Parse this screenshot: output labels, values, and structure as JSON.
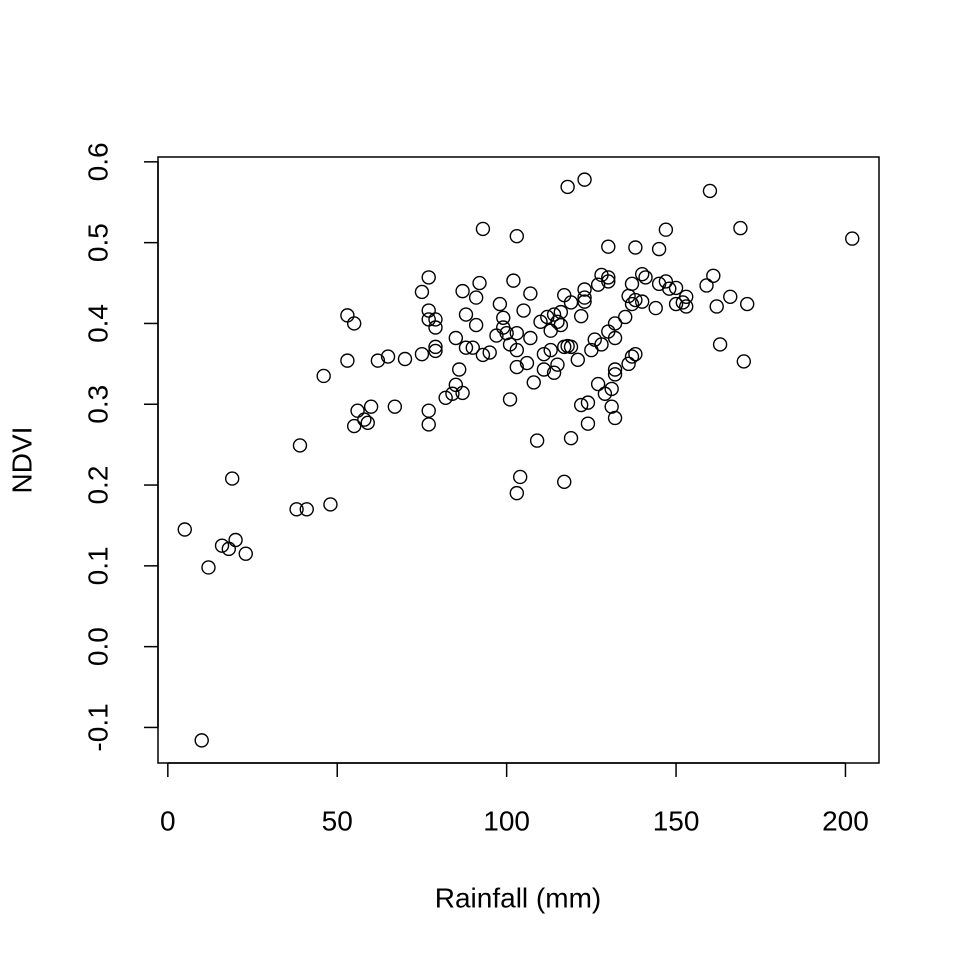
{
  "chart_data": {
    "type": "scatter",
    "x_label": "Rainfall (mm)",
    "y_label": "NDVI",
    "xlim": [
      -2.9,
      209.9
    ],
    "ylim": [
      -0.144,
      0.606
    ],
    "xticks": [
      0,
      50,
      100,
      150,
      200
    ],
    "yticks": [
      -0.1,
      {
        "value": 0,
        "label": "0.0"
      },
      0.1,
      0.2,
      0.3,
      0.4,
      0.5,
      0.6
    ],
    "color": "#000000",
    "x": [
      5,
      10,
      12,
      16,
      18,
      19,
      20,
      23,
      38,
      39,
      41,
      46,
      48,
      53,
      53,
      55,
      55,
      56,
      58,
      59,
      60,
      62,
      65,
      67,
      70,
      75,
      75,
      77,
      77,
      77,
      77,
      77,
      79,
      79,
      79,
      79,
      82,
      84,
      85,
      85,
      86,
      87,
      87,
      88,
      88,
      90,
      91,
      91,
      92,
      93,
      93,
      95,
      97,
      98,
      99,
      99,
      100,
      101,
      101,
      102,
      103,
      103,
      103,
      103,
      103,
      104,
      105,
      106,
      107,
      107,
      108,
      109,
      110,
      111,
      111,
      112,
      113,
      113,
      114,
      114,
      115,
      115,
      116,
      116,
      117,
      117,
      117,
      118,
      118,
      119,
      119,
      119,
      121,
      122,
      122,
      123,
      123,
      123,
      123,
      124,
      124,
      125,
      126,
      127,
      127,
      128,
      128,
      129,
      130,
      130,
      130,
      130,
      131,
      131,
      132,
      132,
      132,
      132,
      132,
      135,
      136,
      136,
      137,
      137,
      137,
      138,
      138,
      138,
      140,
      140,
      141,
      144,
      145,
      145,
      147,
      147,
      148,
      150,
      150,
      152,
      153,
      153,
      159,
      160,
      161,
      162,
      163,
      166,
      169,
      170,
      171,
      202
    ],
    "y": [
      0.145,
      -0.116,
      0.098,
      0.125,
      0.121,
      0.208,
      0.132,
      0.115,
      0.17,
      0.249,
      0.17,
      0.335,
      0.176,
      0.41,
      0.354,
      0.4,
      0.273,
      0.292,
      0.281,
      0.277,
      0.297,
      0.354,
      0.359,
      0.297,
      0.356,
      0.439,
      0.362,
      0.457,
      0.416,
      0.405,
      0.292,
      0.275,
      0.405,
      0.395,
      0.371,
      0.366,
      0.308,
      0.313,
      0.324,
      0.382,
      0.343,
      0.44,
      0.314,
      0.411,
      0.37,
      0.37,
      0.432,
      0.398,
      0.45,
      0.361,
      0.517,
      0.364,
      0.385,
      0.424,
      0.407,
      0.395,
      0.388,
      0.306,
      0.374,
      0.453,
      0.508,
      0.346,
      0.367,
      0.19,
      0.388,
      0.21,
      0.416,
      0.351,
      0.437,
      0.382,
      0.327,
      0.255,
      0.402,
      0.362,
      0.343,
      0.408,
      0.367,
      0.391,
      0.339,
      0.411,
      0.349,
      0.402,
      0.398,
      0.414,
      0.204,
      0.435,
      0.371,
      0.569,
      0.372,
      0.426,
      0.371,
      0.258,
      0.355,
      0.299,
      0.409,
      0.578,
      0.442,
      0.432,
      0.427,
      0.302,
      0.276,
      0.367,
      0.38,
      0.448,
      0.325,
      0.46,
      0.374,
      0.313,
      0.495,
      0.457,
      0.452,
      0.39,
      0.297,
      0.319,
      0.337,
      0.343,
      0.283,
      0.4,
      0.382,
      0.408,
      0.434,
      0.35,
      0.449,
      0.424,
      0.359,
      0.494,
      0.429,
      0.362,
      0.461,
      0.427,
      0.457,
      0.419,
      0.492,
      0.449,
      0.516,
      0.452,
      0.443,
      0.444,
      0.424,
      0.426,
      0.433,
      0.421,
      0.447,
      0.564,
      0.459,
      0.421,
      0.374,
      0.433,
      0.518,
      0.353,
      0.424,
      0.505
    ]
  }
}
